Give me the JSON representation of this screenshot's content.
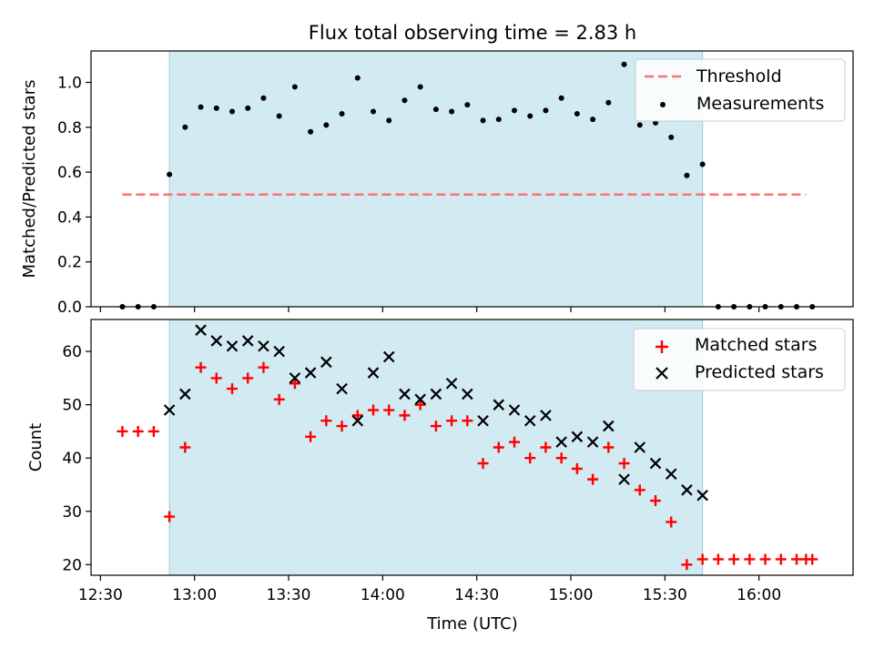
{
  "chart_data": [
    {
      "type": "scatter",
      "title": "Flux total observing time = 2.83 h",
      "xlabel": "",
      "ylabel": "Matched/Predicted stars",
      "xlim_minutes": [
        747,
        990
      ],
      "ylim": [
        0,
        1.14
      ],
      "yticks": [
        0.0,
        0.2,
        0.4,
        0.6,
        0.8,
        1.0
      ],
      "ytick_labels": [
        "0.0",
        "0.2",
        "0.4",
        "0.6",
        "0.8",
        "1.0"
      ],
      "shaded_span_minutes": [
        772,
        942
      ],
      "threshold": {
        "name": "Threshold",
        "value": 0.5,
        "x_range_minutes": [
          757,
          975
        ],
        "color": "#ff7070"
      },
      "legend": [
        "Threshold",
        "Measurements"
      ],
      "series": [
        {
          "name": "Measurements",
          "color": "#000000",
          "x_minutes": [
            757,
            762,
            767,
            772,
            777,
            782,
            787,
            792,
            797,
            802,
            807,
            812,
            817,
            822,
            827,
            832,
            837,
            842,
            847,
            852,
            857,
            862,
            867,
            872,
            877,
            882,
            887,
            892,
            897,
            902,
            907,
            912,
            917,
            922,
            927,
            932,
            937,
            942,
            947,
            952,
            957,
            962,
            967,
            972,
            977
          ],
          "values": [
            0,
            0,
            0,
            0.59,
            0.8,
            0.89,
            0.885,
            0.87,
            0.885,
            0.93,
            0.85,
            0.98,
            0.78,
            0.81,
            0.86,
            1.02,
            0.87,
            0.83,
            0.92,
            0.98,
            0.88,
            0.87,
            0.9,
            0.83,
            0.835,
            0.875,
            0.85,
            0.875,
            0.93,
            0.86,
            0.835,
            0.91,
            1.08,
            0.81,
            0.82,
            0.755,
            0.585,
            0.635,
            0,
            0,
            0,
            0,
            0,
            0,
            0
          ]
        }
      ]
    },
    {
      "type": "scatter",
      "title": "",
      "xlabel": "Time (UTC)",
      "ylabel": "Count",
      "xlim_minutes": [
        747,
        990
      ],
      "ylim": [
        18,
        66
      ],
      "yticks": [
        20,
        30,
        40,
        50,
        60
      ],
      "ytick_labels": [
        "20",
        "30",
        "40",
        "50",
        "60"
      ],
      "xticks_minutes": [
        750,
        780,
        810,
        840,
        870,
        900,
        930,
        960
      ],
      "xtick_labels": [
        "12:30",
        "13:00",
        "13:30",
        "14:00",
        "14:30",
        "15:00",
        "15:30",
        "16:00"
      ],
      "shaded_span_minutes": [
        772,
        942
      ],
      "legend": [
        "Matched stars",
        "Predicted stars"
      ],
      "series": [
        {
          "name": "Matched stars",
          "marker": "+",
          "color": "#ff0000",
          "x_minutes": [
            757,
            762,
            767,
            772,
            777,
            782,
            787,
            792,
            797,
            802,
            807,
            812,
            817,
            822,
            827,
            832,
            837,
            842,
            847,
            852,
            857,
            862,
            867,
            872,
            877,
            882,
            887,
            892,
            897,
            902,
            907,
            912,
            917,
            922,
            927,
            932,
            937,
            942,
            947,
            952,
            957,
            962,
            967,
            972,
            975,
            977
          ],
          "values": [
            45,
            45,
            45,
            29,
            42,
            57,
            55,
            53,
            55,
            57,
            51,
            54,
            44,
            47,
            46,
            48,
            49,
            49,
            48,
            50,
            46,
            47,
            47,
            39,
            42,
            43,
            40,
            42,
            40,
            38,
            36,
            42,
            39,
            34,
            32,
            28,
            20,
            21,
            21,
            21,
            21,
            21,
            21,
            21,
            21,
            21
          ]
        },
        {
          "name": "Predicted stars",
          "marker": "x",
          "color": "#000000",
          "x_minutes": [
            772,
            777,
            782,
            787,
            792,
            797,
            802,
            807,
            812,
            817,
            822,
            827,
            832,
            837,
            842,
            847,
            852,
            857,
            862,
            867,
            872,
            877,
            882,
            887,
            892,
            897,
            902,
            907,
            912,
            917,
            922,
            927,
            932,
            937,
            942
          ],
          "values": [
            49,
            52,
            64,
            62,
            61,
            62,
            61,
            60,
            55,
            56,
            58,
            53,
            47,
            56,
            59,
            52,
            51,
            52,
            54,
            52,
            47,
            50,
            49,
            47,
            48,
            43,
            44,
            43,
            46,
            36,
            42,
            39,
            37,
            34,
            33
          ]
        }
      ]
    }
  ]
}
